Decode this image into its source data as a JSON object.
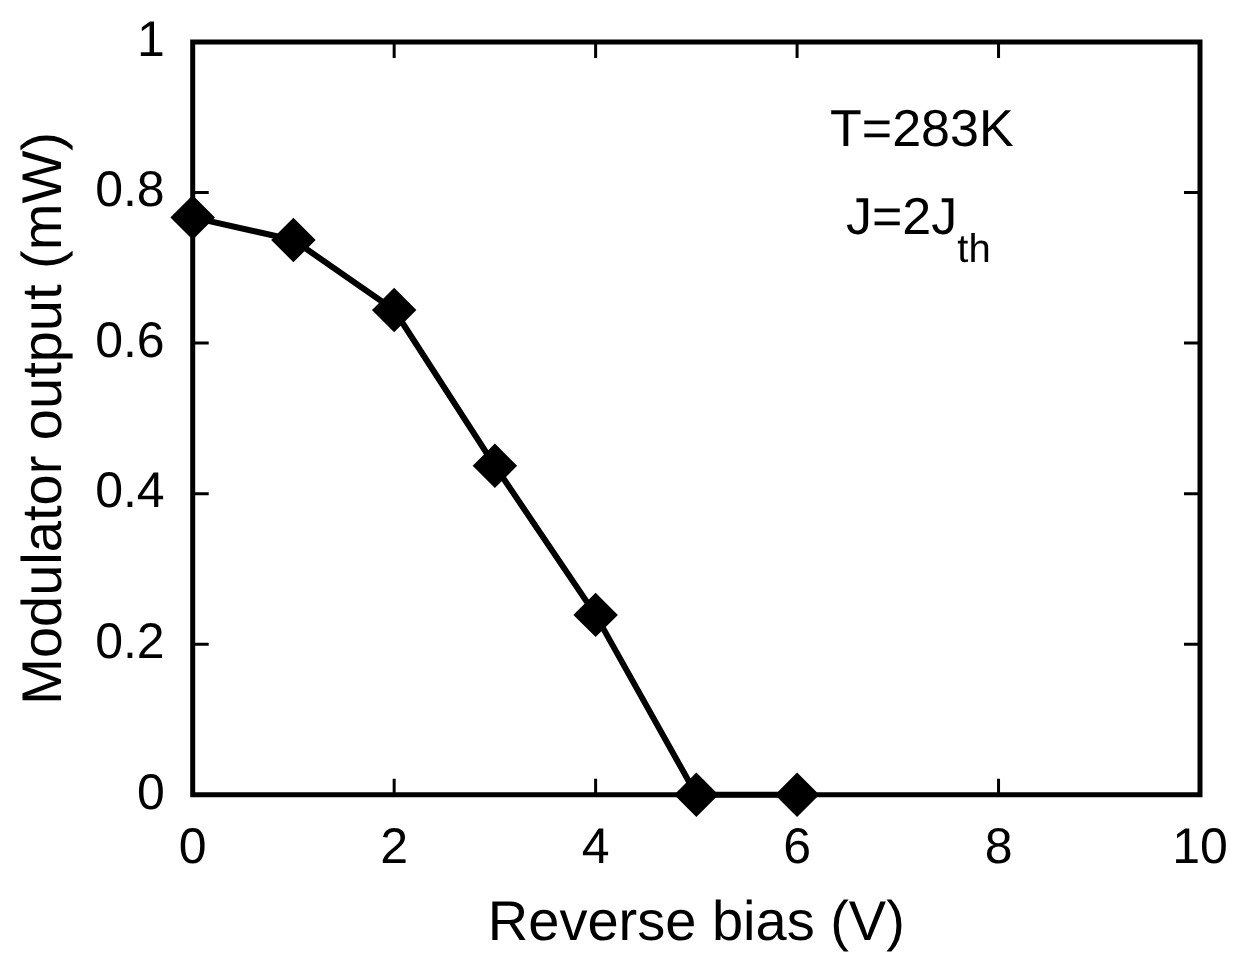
{
  "chart_data": {
    "type": "line",
    "xlabel": "Reverse bias (V)",
    "ylabel": "Modulator output (mW)",
    "x": [
      0,
      1,
      2,
      3,
      4,
      5,
      6
    ],
    "series": [
      {
        "color": "#000000",
        "values": [
          0.767,
          0.737,
          0.644,
          0.437,
          0.239,
          0,
          0
        ]
      }
    ],
    "xlim": [
      0,
      10
    ],
    "xticks": [
      0,
      2,
      4,
      6,
      8,
      10
    ],
    "ylim": [
      0,
      1
    ],
    "yticks": [
      0,
      0.2,
      0.4,
      0.6,
      0.8,
      1
    ],
    "marker": "diamond",
    "line_style": "solid",
    "legend": false,
    "grid": false,
    "annotations": [
      "T=283K",
      "J=2J$_{th}$"
    ]
  }
}
